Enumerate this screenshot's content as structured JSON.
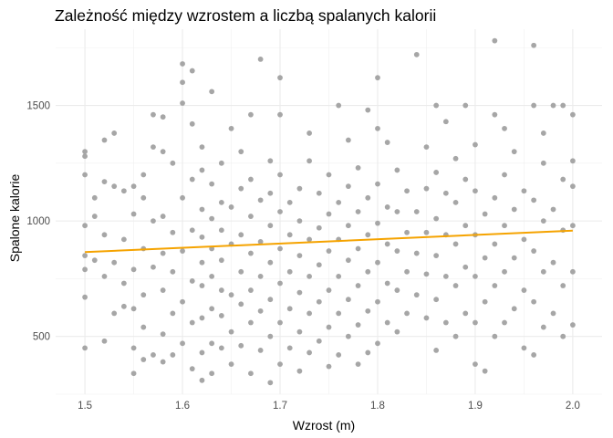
{
  "chart_data": {
    "type": "scatter",
    "title": "Zależność między wzrostem a liczbą spalanych kalorii",
    "xlabel": "Wzrost (m)",
    "ylabel": "Spalone kalorie",
    "xlim": [
      1.47,
      2.03
    ],
    "ylim": [
      250,
      1830
    ],
    "x_ticks": [
      1.5,
      1.6,
      1.7,
      1.8,
      1.9,
      2.0
    ],
    "x_tick_labels": [
      "1.5",
      "1.6",
      "1.7",
      "1.8",
      "1.9",
      "2.0"
    ],
    "y_ticks": [
      500,
      1000,
      1500
    ],
    "y_tick_labels": [
      "500",
      "1000",
      "1500"
    ],
    "grid": true,
    "legend": "none",
    "point_color": "#a6a6a6",
    "trend_line": {
      "color": "#f5a300",
      "x": [
        1.5,
        2.0
      ],
      "y": [
        865,
        958
      ]
    },
    "points": [
      [
        1.5,
        450
      ],
      [
        1.5,
        670
      ],
      [
        1.5,
        790
      ],
      [
        1.5,
        850
      ],
      [
        1.5,
        980
      ],
      [
        1.5,
        1200
      ],
      [
        1.5,
        1280
      ],
      [
        1.5,
        1300
      ],
      [
        1.51,
        830
      ],
      [
        1.51,
        1020
      ],
      [
        1.51,
        1100
      ],
      [
        1.52,
        480
      ],
      [
        1.52,
        760
      ],
      [
        1.52,
        940
      ],
      [
        1.52,
        1170
      ],
      [
        1.52,
        1350
      ],
      [
        1.53,
        600
      ],
      [
        1.53,
        820
      ],
      [
        1.53,
        1150
      ],
      [
        1.53,
        1380
      ],
      [
        1.54,
        630
      ],
      [
        1.54,
        730
      ],
      [
        1.54,
        920
      ],
      [
        1.54,
        1130
      ],
      [
        1.55,
        340
      ],
      [
        1.55,
        450
      ],
      [
        1.55,
        620
      ],
      [
        1.55,
        790
      ],
      [
        1.55,
        1030
      ],
      [
        1.55,
        1150
      ],
      [
        1.56,
        400
      ],
      [
        1.56,
        540
      ],
      [
        1.56,
        680
      ],
      [
        1.56,
        880
      ],
      [
        1.56,
        1100
      ],
      [
        1.56,
        1200
      ],
      [
        1.57,
        420
      ],
      [
        1.57,
        800
      ],
      [
        1.57,
        1000
      ],
      [
        1.57,
        1320
      ],
      [
        1.57,
        1460
      ],
      [
        1.58,
        390
      ],
      [
        1.58,
        510
      ],
      [
        1.58,
        700
      ],
      [
        1.58,
        860
      ],
      [
        1.58,
        1020
      ],
      [
        1.58,
        1300
      ],
      [
        1.58,
        1450
      ],
      [
        1.59,
        420
      ],
      [
        1.59,
        600
      ],
      [
        1.59,
        780
      ],
      [
        1.59,
        950
      ],
      [
        1.59,
        1250
      ],
      [
        1.6,
        470
      ],
      [
        1.6,
        650
      ],
      [
        1.6,
        870
      ],
      [
        1.6,
        1100
      ],
      [
        1.6,
        1510
      ],
      [
        1.6,
        1600
      ],
      [
        1.6,
        1680
      ],
      [
        1.61,
        360
      ],
      [
        1.61,
        560
      ],
      [
        1.61,
        740
      ],
      [
        1.61,
        960
      ],
      [
        1.61,
        1180
      ],
      [
        1.61,
        1420
      ],
      [
        1.61,
        1650
      ],
      [
        1.62,
        310
      ],
      [
        1.62,
        430
      ],
      [
        1.62,
        580
      ],
      [
        1.62,
        720
      ],
      [
        1.62,
        820
      ],
      [
        1.62,
        930
      ],
      [
        1.62,
        1050
      ],
      [
        1.62,
        1220
      ],
      [
        1.62,
        1320
      ],
      [
        1.63,
        340
      ],
      [
        1.63,
        470
      ],
      [
        1.63,
        620
      ],
      [
        1.63,
        760
      ],
      [
        1.63,
        880
      ],
      [
        1.63,
        1010
      ],
      [
        1.63,
        1160
      ],
      [
        1.63,
        1560
      ],
      [
        1.64,
        450
      ],
      [
        1.64,
        590
      ],
      [
        1.64,
        700
      ],
      [
        1.64,
        830
      ],
      [
        1.64,
        960
      ],
      [
        1.64,
        1080
      ],
      [
        1.64,
        1250
      ],
      [
        1.65,
        380
      ],
      [
        1.65,
        520
      ],
      [
        1.65,
        680
      ],
      [
        1.65,
        900
      ],
      [
        1.65,
        1060
      ],
      [
        1.65,
        1400
      ],
      [
        1.66,
        460
      ],
      [
        1.66,
        640
      ],
      [
        1.66,
        780
      ],
      [
        1.66,
        940
      ],
      [
        1.66,
        1140
      ],
      [
        1.66,
        1300
      ],
      [
        1.67,
        340
      ],
      [
        1.67,
        560
      ],
      [
        1.67,
        700
      ],
      [
        1.67,
        860
      ],
      [
        1.67,
        1020
      ],
      [
        1.67,
        1180
      ],
      [
        1.67,
        1460
      ],
      [
        1.68,
        440
      ],
      [
        1.68,
        610
      ],
      [
        1.68,
        760
      ],
      [
        1.68,
        910
      ],
      [
        1.68,
        1090
      ],
      [
        1.68,
        1700
      ],
      [
        1.69,
        300
      ],
      [
        1.69,
        500
      ],
      [
        1.69,
        660
      ],
      [
        1.69,
        820
      ],
      [
        1.69,
        980
      ],
      [
        1.69,
        1120
      ],
      [
        1.69,
        1260
      ],
      [
        1.7,
        380
      ],
      [
        1.7,
        560
      ],
      [
        1.7,
        730
      ],
      [
        1.7,
        880
      ],
      [
        1.7,
        1040
      ],
      [
        1.7,
        1200
      ],
      [
        1.7,
        1460
      ],
      [
        1.7,
        1620
      ],
      [
        1.71,
        450
      ],
      [
        1.71,
        620
      ],
      [
        1.71,
        780
      ],
      [
        1.71,
        940
      ],
      [
        1.71,
        1080
      ],
      [
        1.72,
        350
      ],
      [
        1.72,
        520
      ],
      [
        1.72,
        690
      ],
      [
        1.72,
        850
      ],
      [
        1.72,
        1000
      ],
      [
        1.72,
        1140
      ],
      [
        1.73,
        430
      ],
      [
        1.73,
        600
      ],
      [
        1.73,
        760
      ],
      [
        1.73,
        920
      ],
      [
        1.73,
        1260
      ],
      [
        1.73,
        1380
      ],
      [
        1.74,
        480
      ],
      [
        1.74,
        650
      ],
      [
        1.74,
        810
      ],
      [
        1.74,
        970
      ],
      [
        1.74,
        1120
      ],
      [
        1.75,
        370
      ],
      [
        1.75,
        540
      ],
      [
        1.75,
        700
      ],
      [
        1.75,
        870
      ],
      [
        1.75,
        1030
      ],
      [
        1.75,
        1200
      ],
      [
        1.76,
        420
      ],
      [
        1.76,
        600
      ],
      [
        1.76,
        760
      ],
      [
        1.76,
        920
      ],
      [
        1.76,
        1080
      ],
      [
        1.76,
        1500
      ],
      [
        1.77,
        500
      ],
      [
        1.77,
        660
      ],
      [
        1.77,
        830
      ],
      [
        1.77,
        980
      ],
      [
        1.77,
        1150
      ],
      [
        1.77,
        1350
      ],
      [
        1.78,
        380
      ],
      [
        1.78,
        550
      ],
      [
        1.78,
        720
      ],
      [
        1.78,
        880
      ],
      [
        1.78,
        1040
      ],
      [
        1.78,
        1230
      ],
      [
        1.79,
        430
      ],
      [
        1.79,
        610
      ],
      [
        1.79,
        780
      ],
      [
        1.79,
        940
      ],
      [
        1.79,
        1100
      ],
      [
        1.79,
        1480
      ],
      [
        1.8,
        470
      ],
      [
        1.8,
        650
      ],
      [
        1.8,
        820
      ],
      [
        1.8,
        990
      ],
      [
        1.8,
        1160
      ],
      [
        1.8,
        1400
      ],
      [
        1.8,
        1620
      ],
      [
        1.81,
        560
      ],
      [
        1.81,
        730
      ],
      [
        1.81,
        900
      ],
      [
        1.81,
        1060
      ],
      [
        1.81,
        1340
      ],
      [
        1.82,
        520
      ],
      [
        1.82,
        700
      ],
      [
        1.82,
        870
      ],
      [
        1.82,
        1040
      ],
      [
        1.82,
        1220
      ],
      [
        1.83,
        600
      ],
      [
        1.83,
        780
      ],
      [
        1.83,
        950
      ],
      [
        1.83,
        1130
      ],
      [
        1.84,
        680
      ],
      [
        1.84,
        860
      ],
      [
        1.84,
        1040
      ],
      [
        1.84,
        1720
      ],
      [
        1.85,
        580
      ],
      [
        1.85,
        770
      ],
      [
        1.85,
        950
      ],
      [
        1.85,
        1140
      ],
      [
        1.85,
        1320
      ],
      [
        1.86,
        440
      ],
      [
        1.86,
        660
      ],
      [
        1.86,
        850
      ],
      [
        1.86,
        1010
      ],
      [
        1.86,
        1210
      ],
      [
        1.86,
        1500
      ],
      [
        1.87,
        560
      ],
      [
        1.87,
        760
      ],
      [
        1.87,
        940
      ],
      [
        1.87,
        1120
      ],
      [
        1.87,
        1430
      ],
      [
        1.88,
        500
      ],
      [
        1.88,
        720
      ],
      [
        1.88,
        900
      ],
      [
        1.88,
        1080
      ],
      [
        1.88,
        1270
      ],
      [
        1.89,
        600
      ],
      [
        1.89,
        800
      ],
      [
        1.89,
        980
      ],
      [
        1.89,
        1180
      ],
      [
        1.89,
        1500
      ],
      [
        1.9,
        380
      ],
      [
        1.9,
        560
      ],
      [
        1.9,
        760
      ],
      [
        1.9,
        940
      ],
      [
        1.9,
        1130
      ],
      [
        1.9,
        1330
      ],
      [
        1.91,
        350
      ],
      [
        1.91,
        650
      ],
      [
        1.91,
        840
      ],
      [
        1.91,
        1030
      ],
      [
        1.92,
        500
      ],
      [
        1.92,
        720
      ],
      [
        1.92,
        900
      ],
      [
        1.92,
        1100
      ],
      [
        1.92,
        1460
      ],
      [
        1.92,
        1780
      ],
      [
        1.93,
        560
      ],
      [
        1.93,
        780
      ],
      [
        1.93,
        980
      ],
      [
        1.93,
        1200
      ],
      [
        1.93,
        1400
      ],
      [
        1.94,
        620
      ],
      [
        1.94,
        840
      ],
      [
        1.94,
        1050
      ],
      [
        1.94,
        1300
      ],
      [
        1.95,
        450
      ],
      [
        1.95,
        700
      ],
      [
        1.95,
        920
      ],
      [
        1.95,
        1130
      ],
      [
        1.96,
        420
      ],
      [
        1.96,
        650
      ],
      [
        1.96,
        870
      ],
      [
        1.96,
        1090
      ],
      [
        1.96,
        1500
      ],
      [
        1.96,
        1760
      ],
      [
        1.97,
        540
      ],
      [
        1.97,
        780
      ],
      [
        1.97,
        1000
      ],
      [
        1.97,
        1250
      ],
      [
        1.97,
        1380
      ],
      [
        1.98,
        600
      ],
      [
        1.98,
        820
      ],
      [
        1.98,
        1050
      ],
      [
        1.98,
        1500
      ],
      [
        1.99,
        500
      ],
      [
        1.99,
        720
      ],
      [
        1.99,
        960
      ],
      [
        1.99,
        1180
      ],
      [
        1.99,
        1500
      ],
      [
        2.0,
        550
      ],
      [
        2.0,
        780
      ],
      [
        2.0,
        980
      ],
      [
        2.0,
        1150
      ],
      [
        2.0,
        1260
      ],
      [
        2.0,
        1460
      ]
    ]
  }
}
